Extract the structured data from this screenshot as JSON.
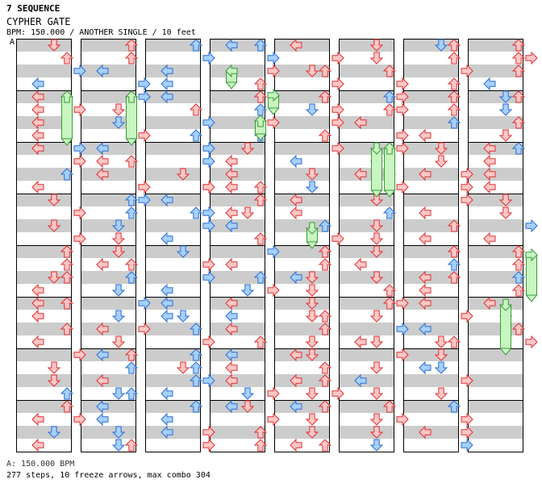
{
  "header": {
    "app_title": "7 SEQUENCE",
    "song_title": "CYPHER GATE",
    "chart_info": "BPM: 150.000 / ANOTHER SINGLE / 10 feet",
    "marker": "A"
  },
  "footer": {
    "bpm_line": "A: 150.000 BPM",
    "stats_line": "277 steps, 10 freeze arrows, max combo 304"
  },
  "colors": {
    "row_band": "#cccccc",
    "red_arrow_fill": "#ffc8c8",
    "red_arrow_stroke": "#e03030",
    "blue_arrow_fill": "#a8d0ff",
    "blue_arrow_stroke": "#2a6fd0",
    "freeze_fill": "#c8f5c0",
    "freeze_stroke": "#3a9a3a",
    "column_border": "#000000"
  },
  "icons": {
    "left": "arrow-left-icon",
    "down": "arrow-down-icon",
    "up": "arrow-up-icon",
    "right": "arrow-right-icon",
    "freeze": "freeze-arrow-icon"
  }
}
